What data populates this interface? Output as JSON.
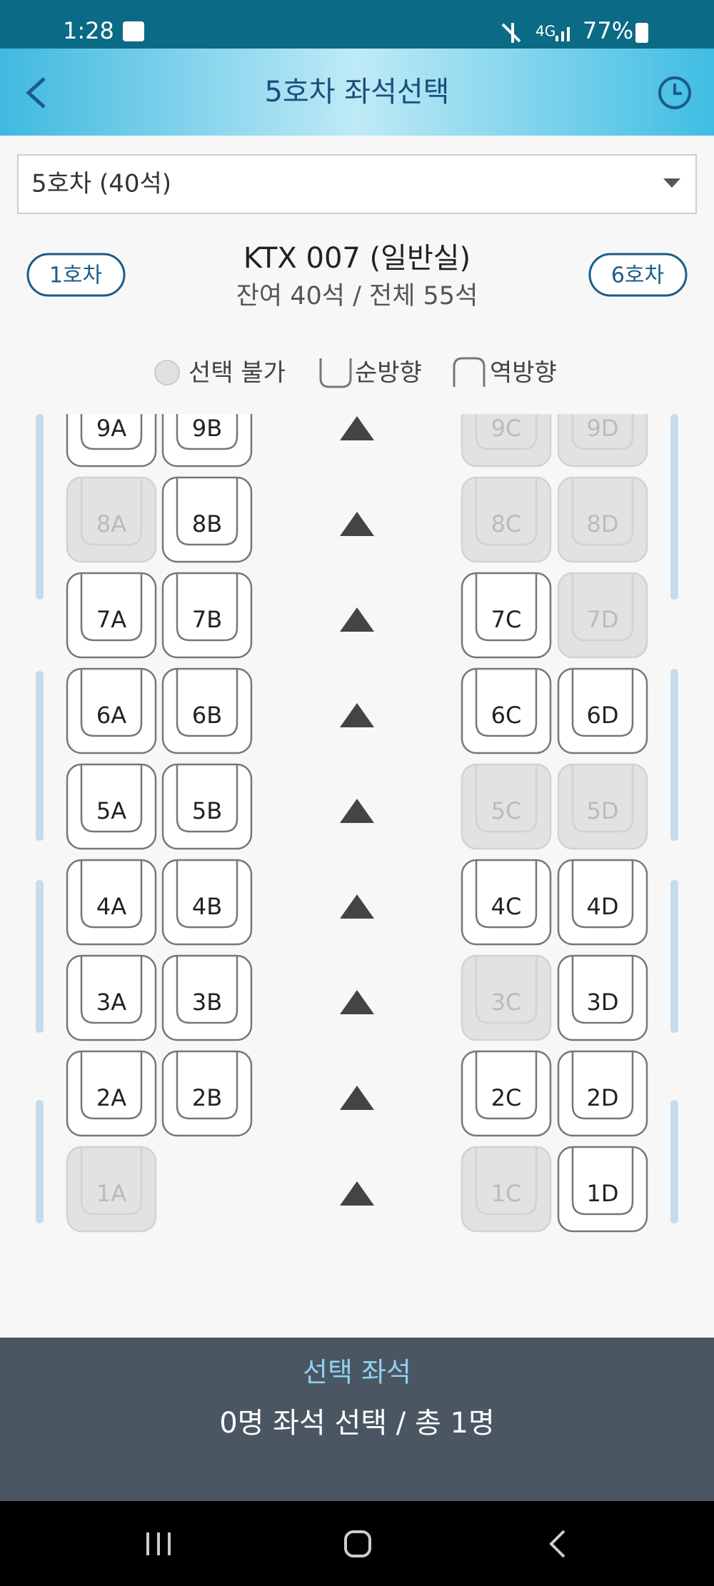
{
  "status_bar": {
    "time": "1:28",
    "battery": "77%"
  },
  "header": {
    "title": "5호차 좌석선택"
  },
  "car_select": {
    "selected": "5호차 (40석)"
  },
  "car_info": {
    "prev_car": "1호차",
    "next_car": "6호차",
    "train": "KTX 007 (일반실)",
    "seats_summary": "잔여 40석 / 전체 55석"
  },
  "legend": {
    "unavailable": "선택 불가",
    "forward": "순방향",
    "backward": "역방향"
  },
  "seats": {
    "rows": [
      [
        {
          "label": "9A",
          "available": true
        },
        {
          "label": "9B",
          "available": true
        },
        {
          "label": "9C",
          "available": false
        },
        {
          "label": "9D",
          "available": false
        }
      ],
      [
        {
          "label": "8A",
          "available": false
        },
        {
          "label": "8B",
          "available": true
        },
        {
          "label": "8C",
          "available": false
        },
        {
          "label": "8D",
          "available": false
        }
      ],
      [
        {
          "label": "7A",
          "available": true
        },
        {
          "label": "7B",
          "available": true
        },
        {
          "label": "7C",
          "available": true
        },
        {
          "label": "7D",
          "available": false
        }
      ],
      [
        {
          "label": "6A",
          "available": true
        },
        {
          "label": "6B",
          "available": true
        },
        {
          "label": "6C",
          "available": true
        },
        {
          "label": "6D",
          "available": true
        }
      ],
      [
        {
          "label": "5A",
          "available": true
        },
        {
          "label": "5B",
          "available": true
        },
        {
          "label": "5C",
          "available": false
        },
        {
          "label": "5D",
          "available": false
        }
      ],
      [
        {
          "label": "4A",
          "available": true
        },
        {
          "label": "4B",
          "available": true
        },
        {
          "label": "4C",
          "available": true
        },
        {
          "label": "4D",
          "available": true
        }
      ],
      [
        {
          "label": "3A",
          "available": true
        },
        {
          "label": "3B",
          "available": true
        },
        {
          "label": "3C",
          "available": false
        },
        {
          "label": "3D",
          "available": true
        }
      ],
      [
        {
          "label": "2A",
          "available": true
        },
        {
          "label": "2B",
          "available": true
        },
        {
          "label": "2C",
          "available": true
        },
        {
          "label": "2D",
          "available": true
        }
      ],
      [
        {
          "label": "1A",
          "available": false
        },
        {
          "label": "1C",
          "available": false
        },
        {
          "label": "1D",
          "available": true
        }
      ]
    ]
  },
  "selection": {
    "title": "선택 좌석",
    "summary": "0명 좌석 선택 / 총 1명"
  }
}
